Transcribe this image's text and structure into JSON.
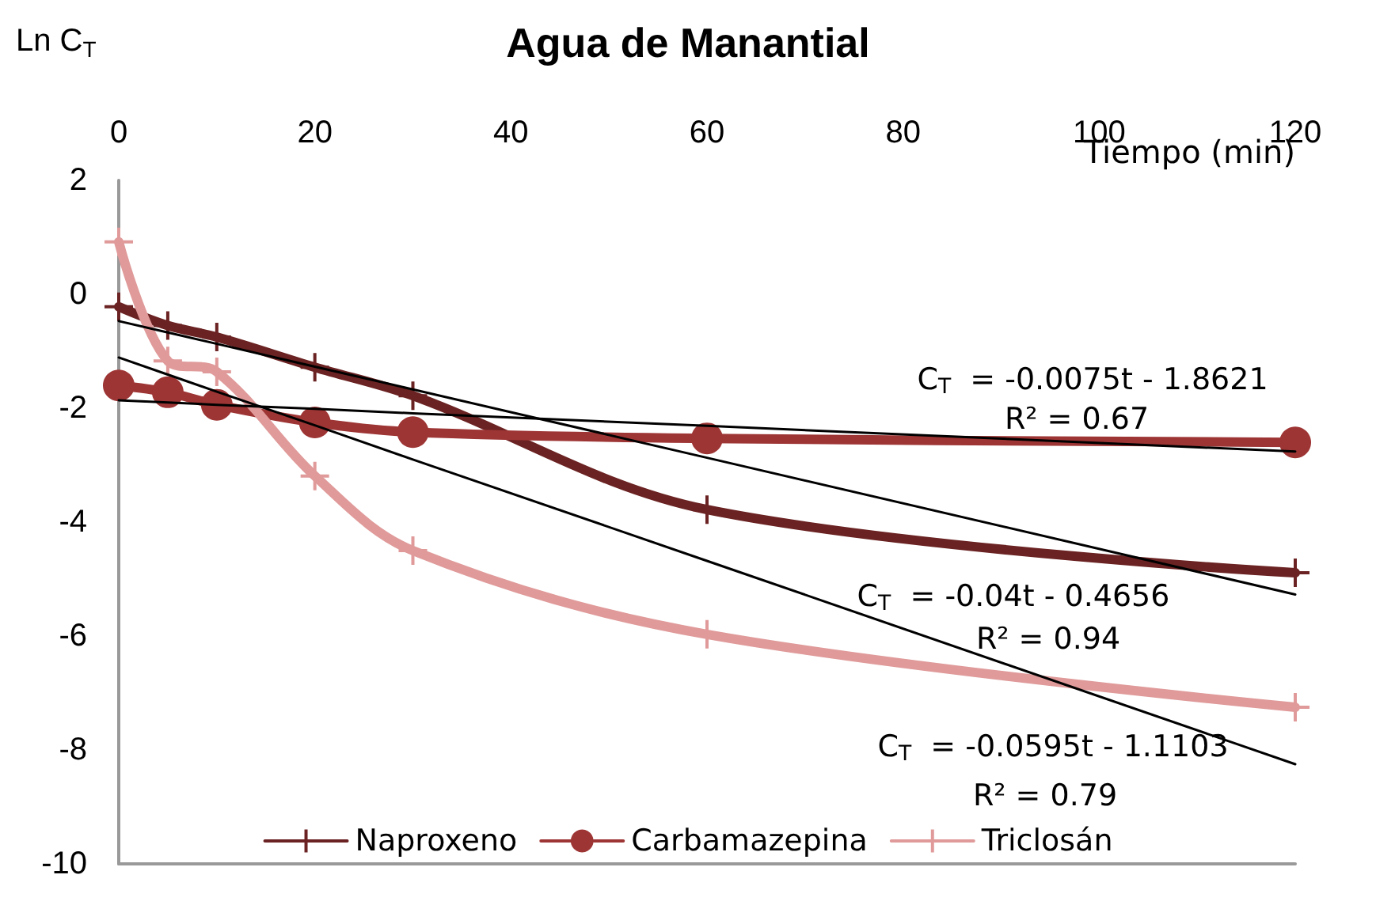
{
  "chart_data": {
    "type": "line",
    "title": "Agua de Manantial",
    "ylabel": "Ln C$_{T}$",
    "xlabel": "Tiempo (min)",
    "x": [
      0,
      5,
      10,
      20,
      30,
      60,
      120
    ],
    "series": [
      {
        "name": "Naproxeno",
        "color": "#6b2222",
        "marker": "cross",
        "values": [
          -0.22,
          -0.55,
          -0.75,
          -1.28,
          -1.78,
          -3.78,
          -4.89
        ]
      },
      {
        "name": "Carbamazepina",
        "color": "#9e3535",
        "marker": "circle",
        "values": [
          -1.6,
          -1.72,
          -1.94,
          -2.25,
          -2.42,
          -2.53,
          -2.6
        ]
      },
      {
        "name": "Triclosán",
        "color": "#e09a9a",
        "marker": "cross",
        "values": [
          0.92,
          -1.17,
          -1.36,
          -3.19,
          -4.5,
          -5.97,
          -7.25
        ]
      },
      {
        "type": "line",
        "color": "#000000",
        "marker": "none",
        "values": [
          -1.86,
          -1.9,
          -1.94,
          -2.01,
          -2.09,
          -2.31,
          -2.76
        ]
      },
      {
        "type": "line",
        "color": "#000000",
        "marker": "none",
        "values": [
          -0.47,
          -0.67,
          -0.87,
          -1.27,
          -1.67,
          -2.87,
          -5.27
        ]
      },
      {
        "type": "line",
        "color": "#000000",
        "marker": "none",
        "values": [
          -1.11,
          -1.41,
          -1.71,
          -2.3,
          -2.9,
          -4.68,
          -8.25
        ]
      }
    ],
    "xlim": [
      0,
      120
    ],
    "xticks": [
      0,
      20,
      40,
      60,
      80,
      100,
      120
    ],
    "ylim": [
      -10,
      2
    ],
    "yticks": [
      -10,
      -8,
      -6,
      -4,
      -2,
      0,
      2
    ],
    "grid": false,
    "legend": "bottom",
    "annotations": [
      "C$_{T}$  = -0.0075t - 1.8621",
      "R² = 0.67",
      "C$_{T}$  = -0.04t - 0.4656",
      "R² = 0.94",
      "C$_{T}$  = -0.0595t - 1.1103",
      "R² = 0.79"
    ]
  }
}
